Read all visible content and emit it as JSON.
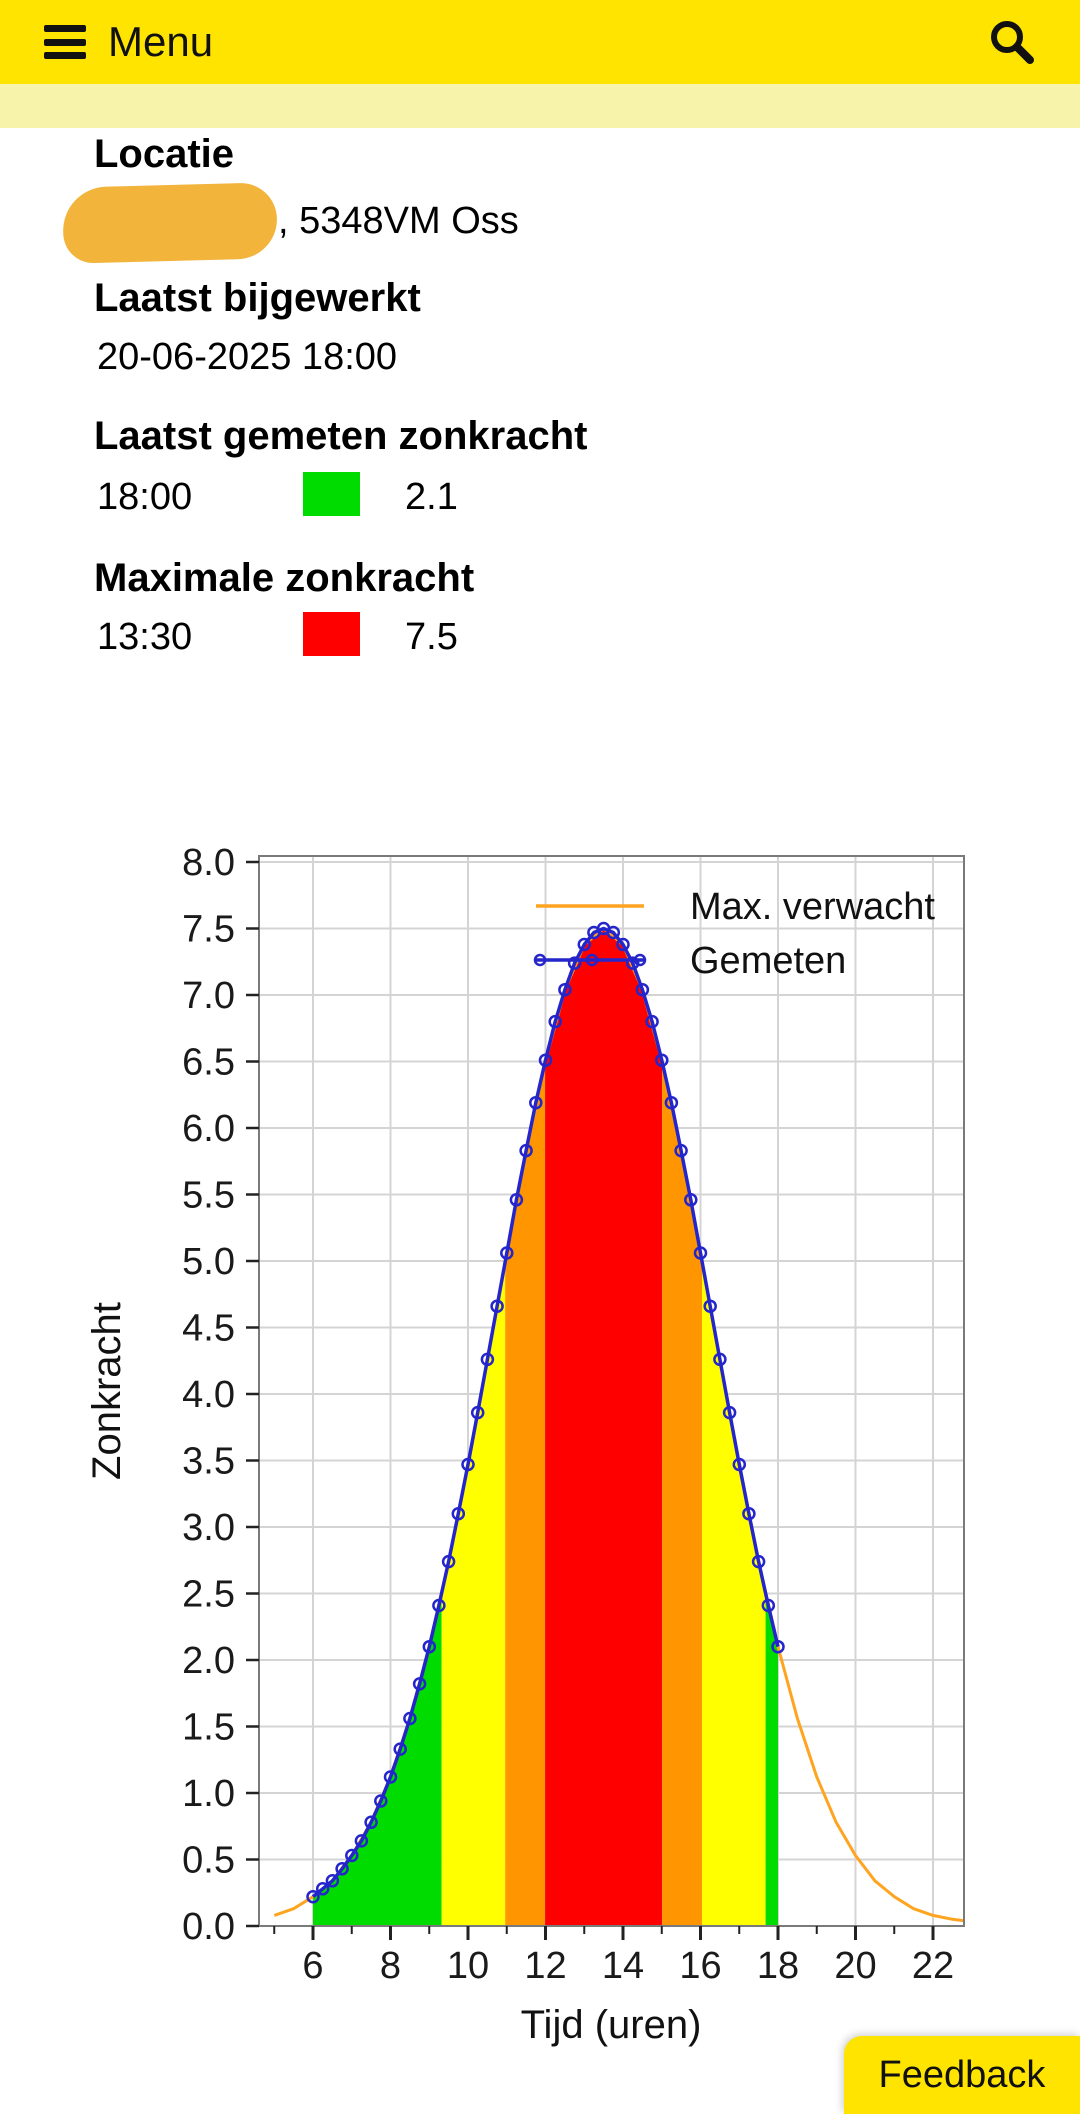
{
  "header": {
    "menu_label": "Menu"
  },
  "location": {
    "heading": "Locatie",
    "address_suffix": ", 5348VM Oss",
    "redaction_color": "#f2b43b"
  },
  "last_updated": {
    "heading": "Laatst bijgewerkt",
    "value": "20-06-2025 18:00"
  },
  "last_measured": {
    "heading": "Laatst gemeten zonkracht",
    "time": "18:00",
    "value": "2.1",
    "swatch_color": "#00dc00"
  },
  "max": {
    "heading": "Maximale zonkracht",
    "time": "13:30",
    "value": "7.5",
    "swatch_color": "#ff0000"
  },
  "feedback_label": "Feedback",
  "chart_data": {
    "type": "area",
    "title": "",
    "xlabel": "Tijd (uren)",
    "ylabel": "Zonkracht",
    "xlim": [
      4.6,
      22.8
    ],
    "ylim": [
      0,
      8
    ],
    "grid": true,
    "legend_position": "top-right",
    "x_ticks": [
      6,
      8,
      10,
      12,
      14,
      16,
      18,
      20,
      22
    ],
    "x_tick_labels": [
      "6",
      "8",
      "10",
      "12",
      "14",
      "16",
      "18",
      "20",
      "22"
    ],
    "y_ticks": [
      0,
      0.5,
      1,
      1.5,
      2,
      2.5,
      3,
      3.5,
      4,
      4.5,
      5,
      5.5,
      6,
      6.5,
      7,
      7.5,
      8
    ],
    "y_tick_labels": [
      "0.0",
      "0.5",
      "1.0",
      "1.5",
      "2.0",
      "2.5",
      "3.0",
      "3.5",
      "4.0",
      "4.5",
      "5.0",
      "5.5",
      "6.0",
      "6.5",
      "7.0",
      "7.5",
      "8.0"
    ],
    "legend": [
      {
        "label": "Max. verwacht",
        "color": "#ffa420",
        "style": "line"
      },
      {
        "label": "Gemeten",
        "color": "#2525cc",
        "style": "line-markers"
      }
    ],
    "series": [
      {
        "name": "Max. verwacht",
        "x": [
          5,
          5.5,
          6,
          6.5,
          7,
          7.5,
          8,
          8.5,
          9,
          9.5,
          10,
          10.5,
          11,
          11.5,
          12,
          12.5,
          13,
          13.5,
          14,
          14.5,
          15,
          15.5,
          16,
          16.5,
          17,
          17.5,
          18,
          18.5,
          19,
          19.5,
          20,
          20.5,
          21,
          21.5,
          22,
          22.5,
          22.8
        ],
        "values": [
          0.08,
          0.13,
          0.22,
          0.34,
          0.53,
          0.78,
          1.12,
          1.56,
          2.1,
          2.74,
          3.47,
          4.26,
          5.06,
          5.83,
          6.51,
          7.04,
          7.38,
          7.5,
          7.38,
          7.04,
          6.51,
          5.83,
          5.06,
          4.26,
          3.47,
          2.74,
          2.1,
          1.56,
          1.12,
          0.78,
          0.53,
          0.34,
          0.22,
          0.13,
          0.08,
          0.05,
          0.04
        ]
      },
      {
        "name": "Gemeten",
        "x": [
          6,
          6.25,
          6.5,
          6.75,
          7,
          7.25,
          7.5,
          7.75,
          8,
          8.25,
          8.5,
          8.75,
          9,
          9.25,
          9.5,
          9.75,
          10,
          10.25,
          10.5,
          10.75,
          11,
          11.25,
          11.5,
          11.75,
          12,
          12.25,
          12.5,
          12.75,
          13,
          13.25,
          13.5,
          13.75,
          14,
          14.25,
          14.5,
          14.75,
          15,
          15.25,
          15.5,
          15.75,
          16,
          16.25,
          16.5,
          16.75,
          17,
          17.25,
          17.5,
          17.75,
          18
        ],
        "values": [
          0.22,
          0.28,
          0.34,
          0.43,
          0.53,
          0.64,
          0.78,
          0.94,
          1.12,
          1.33,
          1.56,
          1.82,
          2.1,
          2.41,
          2.74,
          3.1,
          3.47,
          3.86,
          4.26,
          4.66,
          5.06,
          5.46,
          5.83,
          6.19,
          6.51,
          6.8,
          7.04,
          7.24,
          7.38,
          7.47,
          7.5,
          7.47,
          7.38,
          7.24,
          7.04,
          6.8,
          6.51,
          6.19,
          5.83,
          5.46,
          5.06,
          4.66,
          4.26,
          3.86,
          3.47,
          3.1,
          2.74,
          2.41,
          2.1
        ]
      }
    ],
    "uv_bands": [
      {
        "from": 6,
        "to": 9.32,
        "color": "#00dc00"
      },
      {
        "from": 9.32,
        "to": 10.96,
        "color": "#ffff00"
      },
      {
        "from": 10.96,
        "to": 11.99,
        "color": "#ff9500"
      },
      {
        "from": 11.99,
        "to": 15.01,
        "color": "#ff0000"
      },
      {
        "from": 15.01,
        "to": 16.04,
        "color": "#ff9500"
      },
      {
        "from": 16.04,
        "to": 17.68,
        "color": "#ffff00"
      },
      {
        "from": 17.68,
        "to": 18,
        "color": "#00dc00"
      }
    ]
  }
}
